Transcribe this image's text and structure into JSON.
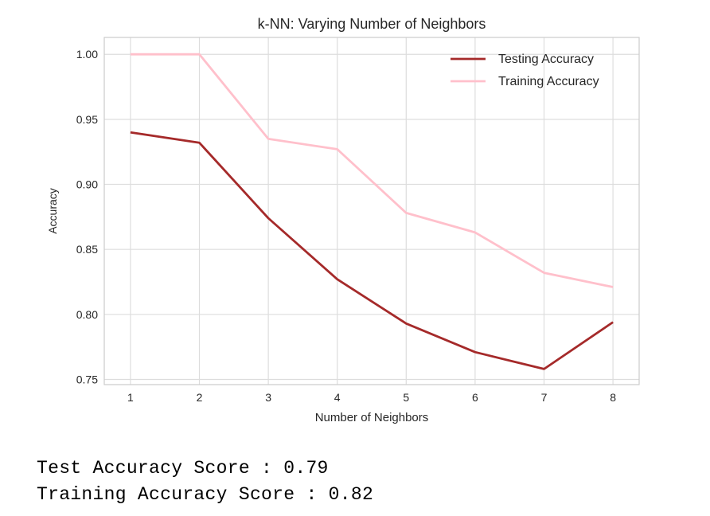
{
  "chart_data": {
    "type": "line",
    "title": "k-NN: Varying Number of Neighbors",
    "xlabel": "Number of Neighbors",
    "ylabel": "Accuracy",
    "x": [
      1,
      2,
      3,
      4,
      5,
      6,
      7,
      8
    ],
    "xlim": [
      0.62,
      8.38
    ],
    "ylim": [
      0.746,
      1.013
    ],
    "yticks": [
      0.75,
      0.8,
      0.85,
      0.9,
      0.95,
      1.0
    ],
    "grid": true,
    "legend_position": "top-right",
    "series": [
      {
        "name": "Testing Accuracy",
        "color": "#a52a2a",
        "values": [
          0.94,
          0.932,
          0.874,
          0.827,
          0.793,
          0.771,
          0.758,
          0.794
        ]
      },
      {
        "name": "Training Accuracy",
        "color": "#ffc0cb",
        "values": [
          1.0,
          1.0,
          0.935,
          0.927,
          0.878,
          0.863,
          0.832,
          0.821
        ]
      }
    ]
  },
  "output": {
    "test_line": "Test Accuracy Score : 0.79",
    "train_line": "Training Accuracy Score : 0.82"
  }
}
